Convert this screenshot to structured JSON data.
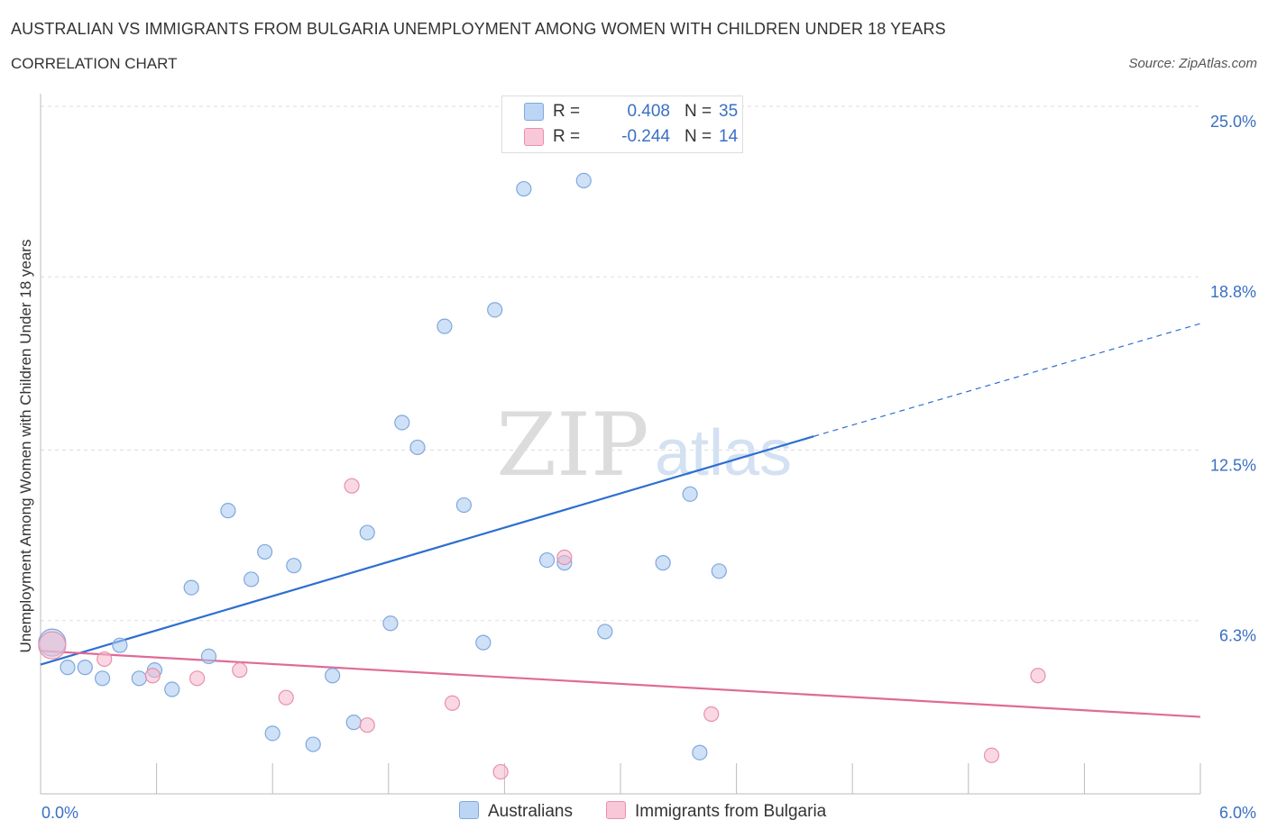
{
  "header": {
    "title": "AUSTRALIAN VS IMMIGRANTS FROM BULGARIA UNEMPLOYMENT AMONG WOMEN WITH CHILDREN UNDER 18 YEARS",
    "subtitle": "CORRELATION CHART",
    "source": "Source: ZipAtlas.com"
  },
  "watermark": {
    "zip": "ZIP",
    "atlas": "atlas"
  },
  "stats_legend": [
    {
      "r_label": "R =",
      "r_value": "0.408",
      "n_label": "N =",
      "n_value": "35"
    },
    {
      "r_label": "R =",
      "r_value": "-0.244",
      "n_label": "N =",
      "n_value": "14"
    }
  ],
  "chart_data": {
    "type": "scatter",
    "title": "AUSTRALIAN VS IMMIGRANTS FROM BULGARIA UNEMPLOYMENT AMONG WOMEN WITH CHILDREN UNDER 18 YEARS",
    "subtitle": "CORRELATION CHART",
    "ylabel": "Unemployment Among Women with Children Under 18 years",
    "xlabel": "",
    "xlim": [
      0,
      6.0
    ],
    "ylim": [
      0,
      25.0
    ],
    "x_tick_labels": [
      "0.0%",
      "6.0%"
    ],
    "y_ticks": [
      {
        "value": 6.3,
        "label": "6.3%"
      },
      {
        "value": 12.5,
        "label": "12.5%"
      },
      {
        "value": 18.8,
        "label": "18.8%"
      },
      {
        "value": 25.0,
        "label": "25.0%"
      }
    ],
    "grid": "horizontal-dashed",
    "legend_position": "bottom-center",
    "series": [
      {
        "name": "Australians",
        "color": "#a8c8f0",
        "stroke": "#7fa8de",
        "trend_color": "#2d6fd0",
        "trend": {
          "x0": 0.0,
          "y0": 4.7,
          "x1": 4.0,
          "y1": 13.0,
          "x_dash_end": 6.0,
          "y_dash_end": 17.1
        },
        "points": [
          {
            "x": 0.06,
            "y": 5.5,
            "size": "large"
          },
          {
            "x": 0.14,
            "y": 4.6
          },
          {
            "x": 0.23,
            "y": 4.6
          },
          {
            "x": 0.32,
            "y": 4.2
          },
          {
            "x": 0.41,
            "y": 5.4
          },
          {
            "x": 0.51,
            "y": 4.2
          },
          {
            "x": 0.59,
            "y": 4.5
          },
          {
            "x": 0.68,
            "y": 3.8
          },
          {
            "x": 0.78,
            "y": 7.5
          },
          {
            "x": 0.87,
            "y": 5.0
          },
          {
            "x": 0.97,
            "y": 10.3
          },
          {
            "x": 1.09,
            "y": 7.8
          },
          {
            "x": 1.16,
            "y": 8.8
          },
          {
            "x": 1.2,
            "y": 2.2
          },
          {
            "x": 1.31,
            "y": 8.3
          },
          {
            "x": 1.41,
            "y": 1.8
          },
          {
            "x": 1.51,
            "y": 4.3
          },
          {
            "x": 1.62,
            "y": 2.6
          },
          {
            "x": 1.69,
            "y": 9.5
          },
          {
            "x": 1.81,
            "y": 6.2
          },
          {
            "x": 1.87,
            "y": 13.5
          },
          {
            "x": 1.95,
            "y": 12.6
          },
          {
            "x": 2.09,
            "y": 17.0
          },
          {
            "x": 2.19,
            "y": 10.5
          },
          {
            "x": 2.29,
            "y": 5.5
          },
          {
            "x": 2.35,
            "y": 17.6
          },
          {
            "x": 2.5,
            "y": 22.0
          },
          {
            "x": 2.62,
            "y": 8.5
          },
          {
            "x": 2.71,
            "y": 8.4
          },
          {
            "x": 2.81,
            "y": 22.3
          },
          {
            "x": 2.92,
            "y": 5.9
          },
          {
            "x": 3.22,
            "y": 8.4
          },
          {
            "x": 3.36,
            "y": 10.9
          },
          {
            "x": 3.41,
            "y": 1.5
          },
          {
            "x": 3.51,
            "y": 8.1
          }
        ]
      },
      {
        "name": "Immigrants from Bulgaria",
        "color": "#f5b8cc",
        "stroke": "#e890aa",
        "trend_color": "#e06a96",
        "trend": {
          "x0": 0.0,
          "y0": 5.2,
          "x1": 6.0,
          "y1": 2.8
        },
        "points": [
          {
            "x": 0.06,
            "y": 5.4,
            "size": "large"
          },
          {
            "x": 0.33,
            "y": 4.9
          },
          {
            "x": 0.58,
            "y": 4.3
          },
          {
            "x": 0.81,
            "y": 4.2
          },
          {
            "x": 1.03,
            "y": 4.5
          },
          {
            "x": 1.27,
            "y": 3.5
          },
          {
            "x": 1.61,
            "y": 11.2
          },
          {
            "x": 1.69,
            "y": 2.5
          },
          {
            "x": 2.13,
            "y": 3.3
          },
          {
            "x": 2.38,
            "y": 0.8
          },
          {
            "x": 2.71,
            "y": 8.6
          },
          {
            "x": 3.47,
            "y": 2.9
          },
          {
            "x": 4.92,
            "y": 1.4
          },
          {
            "x": 5.16,
            "y": 4.3
          }
        ]
      }
    ]
  }
}
